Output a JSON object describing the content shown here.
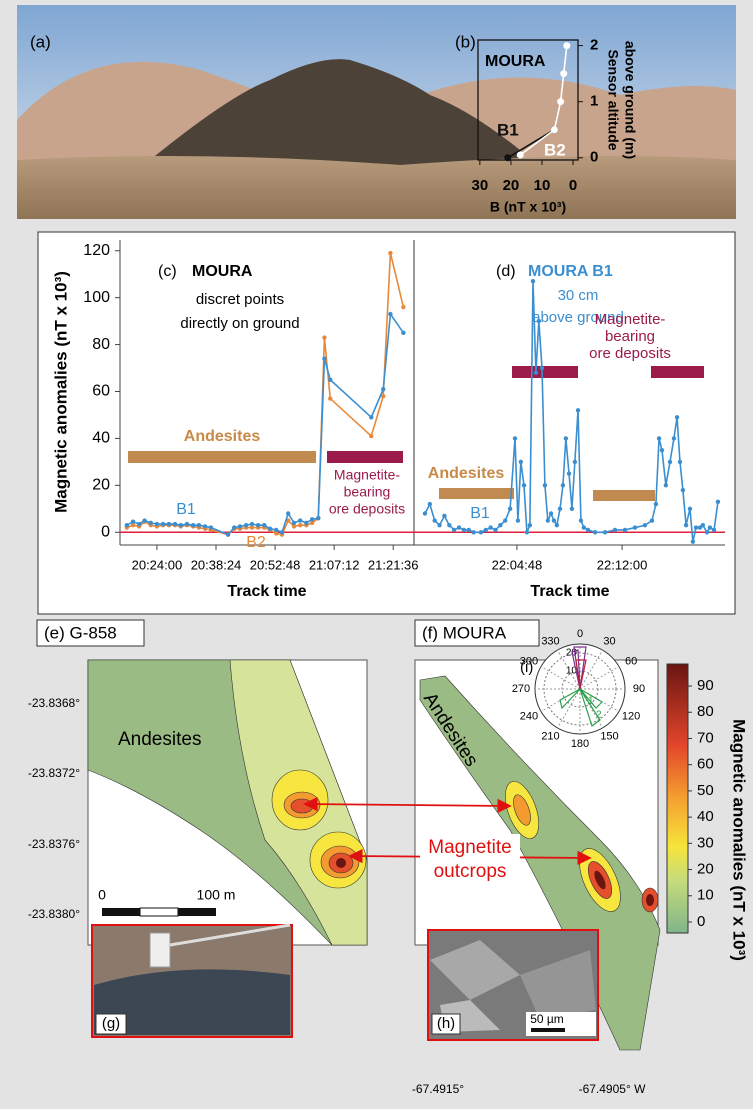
{
  "panel_a": {
    "label": "(a)"
  },
  "panel_b": {
    "label": "(b)",
    "title": "MOURA",
    "x_label": "B (nT x 10³)",
    "y_label": [
      "Sensor altitude",
      "above ground (m)"
    ],
    "xlim": [
      30.6,
      -1.6
    ],
    "xticks": [
      30,
      20,
      10,
      0
    ],
    "ylim": [
      -0.04,
      2.1
    ],
    "yticks": [
      0,
      1,
      2
    ],
    "series": [
      {
        "name": "B1",
        "color": "#111111",
        "x": [
          21,
          6
        ],
        "values": [
          0,
          0.5
        ]
      },
      {
        "name": "B2",
        "color": "#ffffff",
        "x": [
          17,
          6,
          4,
          3,
          2
        ],
        "values": [
          0.05,
          0.5,
          1,
          1.5,
          2
        ]
      }
    ]
  },
  "plot_cd": {
    "y_label": "Magnetic anomalies (nT x 10³)",
    "ylim": [
      -5,
      125
    ],
    "yticks": [
      0,
      20,
      40,
      60,
      80,
      100,
      120
    ]
  },
  "panel_c": {
    "label": "(c)",
    "title": "MOURA",
    "subtitle": [
      "discret points",
      "directly on ground"
    ],
    "x_label": "Track time",
    "xlim": [
      72900,
      77200
    ],
    "xticks": [
      {
        "value": 73440,
        "label": "20:24:00"
      },
      {
        "value": 74304,
        "label": "20:38:24"
      },
      {
        "value": 75168,
        "label": "20:52:48"
      },
      {
        "value": 76032,
        "label": "21:07:12"
      },
      {
        "value": 76896,
        "label": "21:21:36"
      }
    ],
    "x": [
      73000,
      73090,
      73180,
      73260,
      73350,
      73440,
      73530,
      73615,
      73705,
      73790,
      73880,
      73970,
      74055,
      74145,
      74230,
      74480,
      74570,
      74655,
      74745,
      74830,
      74920,
      75010,
      75095,
      75185,
      75270,
      75360,
      75445,
      75535,
      75625,
      75710,
      75800,
      75890,
      75975,
      76575,
      76750,
      76855,
      77045
    ],
    "series": [
      {
        "name": "B1",
        "color": "#3b8fd0",
        "values": [
          3,
          4.5,
          3.5,
          5,
          4,
          3.5,
          3.5,
          3.5,
          3.5,
          3,
          3.5,
          3,
          3,
          2.5,
          2,
          -1,
          2,
          2.5,
          3,
          3.5,
          3,
          3,
          1.5,
          1,
          0,
          8,
          4,
          5,
          4,
          5.5,
          6,
          74,
          65,
          49,
          61,
          93,
          85
        ]
      },
      {
        "name": "B2",
        "color": "#e8893a",
        "values": [
          2,
          3,
          2.5,
          4.5,
          3,
          2.5,
          3,
          3,
          3,
          2.5,
          3,
          2.5,
          2,
          1.5,
          1,
          -1,
          1.5,
          1.5,
          2,
          2,
          2,
          2,
          1,
          -0.5,
          -1,
          5,
          2.5,
          3,
          3,
          4,
          6,
          83,
          57,
          41,
          58,
          119,
          96
        ]
      }
    ],
    "annotations": {
      "andesites": "Andesites",
      "ore": [
        "Magnetite-",
        "bearing",
        "ore deposits"
      ]
    }
  },
  "panel_d": {
    "label": "(d)",
    "title": "MOURA B1",
    "subtitle": [
      "30 cm",
      "above ground"
    ],
    "x_label": "Track time",
    "xlim": [
      79065,
      80343
    ],
    "xticks": [
      {
        "value": 79488,
        "label": "22:04:48"
      },
      {
        "value": 79920,
        "label": "22:12:00"
      }
    ],
    "x": [
      79110,
      79130,
      79150,
      79170,
      79190,
      79210,
      79230,
      79250,
      79270,
      79290,
      79310,
      79340,
      79360,
      79380,
      79400,
      79420,
      79440,
      79460,
      79480,
      79492,
      79504,
      79517,
      79529,
      79541,
      79554,
      79566,
      79578,
      79591,
      79603,
      79615,
      79628,
      79640,
      79652,
      79665,
      79677,
      79689,
      79702,
      79714,
      79726,
      79739,
      79751,
      79763,
      79780,
      79809,
      79850,
      79891,
      79932,
      79973,
      80014,
      80043,
      80059,
      80072,
      80084,
      80100,
      80117,
      80133,
      80146,
      80158,
      80170,
      80183,
      80199,
      80211,
      80224,
      80240,
      80252,
      80269,
      80281,
      80298,
      80314
    ],
    "series": [
      {
        "name": "B1",
        "color": "#3b8fd0",
        "values": [
          8,
          12,
          5,
          3,
          7,
          3,
          1,
          2,
          1,
          1,
          0,
          0,
          1,
          2,
          1,
          3,
          5,
          10,
          40,
          5,
          30,
          20,
          0,
          3,
          107,
          68,
          90,
          70,
          20,
          5,
          8,
          5,
          3,
          10,
          20,
          40,
          25,
          10,
          30,
          52,
          5,
          2,
          1,
          0,
          0,
          1,
          1,
          2,
          3,
          5,
          12,
          40,
          35,
          20,
          30,
          40,
          49,
          30,
          18,
          3,
          10,
          -4,
          2,
          2,
          3,
          0,
          2,
          1,
          13
        ]
      }
    ],
    "annotations": {
      "andesites": "Andesites",
      "ore": [
        "Magnetite-",
        "bearing",
        "ore deposits"
      ]
    }
  },
  "panel_e": {
    "label": "(e) G-858",
    "yticks": [
      "-23.8368°",
      "-23.8372°",
      "-23.8376°",
      "-23.8380°"
    ],
    "unit": "Andesites",
    "scale": [
      "0",
      "100 m"
    ]
  },
  "panel_f": {
    "label": "(f) MOURA",
    "xticks": [
      "-67.4915°",
      "-67.4905° W"
    ],
    "unit": "Andesites"
  },
  "outcrops": [
    "Magnetite",
    "outcrops"
  ],
  "panel_g": {
    "label": "(g)"
  },
  "panel_h": {
    "label": "(h)",
    "scale": "50 µm"
  },
  "panel_i": {
    "label": "(i)",
    "angles": [
      0,
      30,
      60,
      90,
      120,
      150,
      180,
      210,
      240,
      270,
      300,
      330
    ],
    "radii": [
      10,
      20
    ],
    "radii_green": [
      1,
      2
    ]
  },
  "colorbar": {
    "label": "Magnetic anomalies (nT x 10³)",
    "lim": [
      -4.2,
      98.4
    ],
    "ticks": [
      0,
      10,
      20,
      30,
      40,
      50,
      60,
      70,
      80,
      90
    ]
  }
}
